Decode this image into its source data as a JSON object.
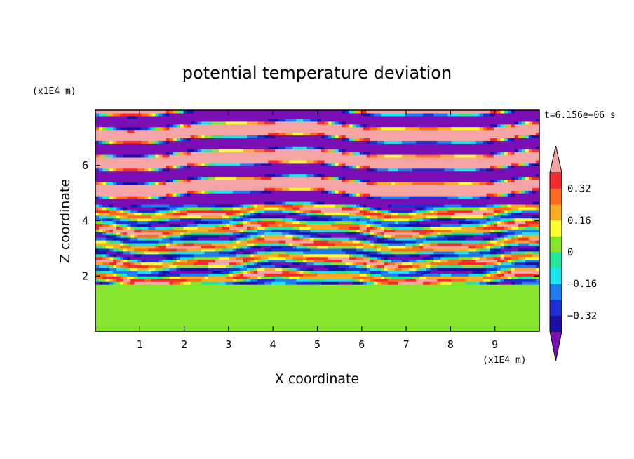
{
  "chart_data": {
    "type": "heatmap",
    "title": "potential temperature deviation",
    "xlabel": "X coordinate",
    "ylabel": "Z coordinate",
    "x_unit": "(x1E4 m)",
    "y_unit": "(x1E4 m)",
    "time_label": "t=6.156e+06 s",
    "xlim": [
      0,
      10
    ],
    "ylim": [
      0,
      8
    ],
    "x_ticks": [
      1,
      2,
      3,
      4,
      5,
      6,
      7,
      8,
      9
    ],
    "y_ticks": [
      2,
      4,
      6
    ],
    "grid": false,
    "colorbar": {
      "placement": "right",
      "levels": [
        -0.4,
        -0.32,
        -0.24,
        -0.16,
        -0.08,
        0,
        0.08,
        0.16,
        0.24,
        0.32,
        0.4
      ],
      "tick_labels": [
        "0.32",
        "0.16",
        "0",
        "−0.16",
        "−0.32"
      ],
      "tick_values": [
        0.32,
        0.16,
        0,
        -0.16,
        -0.32
      ],
      "under_color": "#7b0fb5",
      "over_color": "#f5a5a5",
      "colors": [
        "#1c0fa8",
        "#1e2fd6",
        "#1f7cf2",
        "#17e6f0",
        "#22e69a",
        "#86e62e",
        "#ffff2e",
        "#ffaa22",
        "#ff6a1e",
        "#f52a2a"
      ]
    },
    "bands": [
      {
        "z_range": [
          0,
          1.7
        ],
        "value_range": [
          0,
          0.08
        ],
        "description_color": "#86e62e"
      },
      {
        "z_range": [
          1.7,
          4.6
        ],
        "value_range": [
          -0.4,
          0.4
        ],
        "description_color": "mixed"
      },
      {
        "z_range": [
          4.6,
          8.0
        ],
        "value_range": [
          -0.45,
          0.45
        ],
        "description_color": "alternating #7b0fb5 / #f5a5a5"
      }
    ]
  }
}
